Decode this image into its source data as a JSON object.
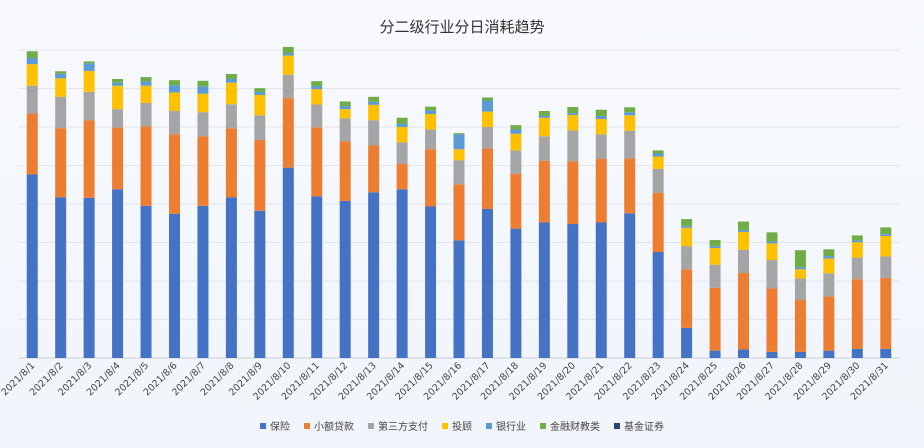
{
  "title": "分二级行业分日消耗趋势",
  "chart_data": {
    "type": "bar",
    "stacked": true,
    "title": "分二级行业分日消耗趋势",
    "xlabel": "",
    "ylabel": "",
    "grid": true,
    "legend_position": "bottom",
    "ylim": [
      0,
      100
    ],
    "categories": [
      "2021/8/1",
      "2021/8/2",
      "2021/8/3",
      "2021/8/4",
      "2021/8/5",
      "2021/8/6",
      "2021/8/7",
      "2021/8/8",
      "2021/8/9",
      "2021/8/10",
      "2021/8/11",
      "2021/8/12",
      "2021/8/13",
      "2021/8/14",
      "2021/8/15",
      "2021/8/16",
      "2021/8/17",
      "2021/8/18",
      "2021/8/19",
      "2021/8/20",
      "2021/8/21",
      "2021/8/22",
      "2021/8/23",
      "2021/8/24",
      "2021/8/25",
      "2021/8/26",
      "2021/8/27",
      "2021/8/28",
      "2021/8/29",
      "2021/8/30",
      "2021/8/31"
    ],
    "series": [
      {
        "name": "保险",
        "color": "#4472c4",
        "values": [
          59.6,
          52.2,
          52.0,
          54.8,
          49.4,
          46.8,
          49.4,
          52.2,
          47.8,
          61.8,
          52.5,
          51.0,
          53.8,
          54.8,
          49.2,
          38.2,
          48.4,
          42.0,
          44.0,
          43.5,
          44.0,
          47.0,
          34.4,
          9.8,
          2.4,
          2.8,
          2.0,
          2.0,
          2.4,
          3.0,
          3.0
        ]
      },
      {
        "name": "小额贷款",
        "color": "#ed7d31",
        "values": [
          19.8,
          22.4,
          25.2,
          20.0,
          25.8,
          25.8,
          22.6,
          22.4,
          23.0,
          22.6,
          22.4,
          19.3,
          15.2,
          8.2,
          18.6,
          18.2,
          19.6,
          17.8,
          20.0,
          20.4,
          20.6,
          17.8,
          19.2,
          19.0,
          20.4,
          24.8,
          20.6,
          16.8,
          17.6,
          22.6,
          23.0
        ]
      },
      {
        "name": "第三方支付",
        "color": "#a5a5a5",
        "values": [
          9.0,
          10.2,
          9.2,
          6.0,
          7.6,
          7.6,
          7.8,
          7.8,
          8.0,
          7.6,
          7.4,
          7.5,
          8.2,
          7.0,
          6.4,
          7.8,
          7.0,
          7.6,
          8.0,
          10.0,
          8.0,
          9.0,
          7.8,
          7.5,
          7.5,
          7.5,
          9.2,
          7.0,
          7.5,
          7.0,
          7.0
        ]
      },
      {
        "name": "投顾",
        "color": "#ffc000",
        "values": [
          7.0,
          6.0,
          6.8,
          7.6,
          5.6,
          6.0,
          6.0,
          7.0,
          6.6,
          6.2,
          5.0,
          3.0,
          5.0,
          5.0,
          5.0,
          3.6,
          5.0,
          5.4,
          6.0,
          5.0,
          5.0,
          5.0,
          4.0,
          6.0,
          5.4,
          5.8,
          5.4,
          3.0,
          4.8,
          5.0,
          6.6
        ]
      },
      {
        "name": "银行业",
        "color": "#5b9bd5",
        "values": [
          2.0,
          1.5,
          2.5,
          1.0,
          1.4,
          2.4,
          2.4,
          1.2,
          1.0,
          0.8,
          1.0,
          1.0,
          1.0,
          1.0,
          1.2,
          4.8,
          3.6,
          1.4,
          0.6,
          0.6,
          1.0,
          1.0,
          1.0,
          0.6,
          0.6,
          0.6,
          0.6,
          0.6,
          0.8,
          0.6,
          0.6
        ]
      },
      {
        "name": "金融财教类",
        "color": "#70ad47",
        "values": [
          2.2,
          0.8,
          0.6,
          1.2,
          1.4,
          1.6,
          1.8,
          1.6,
          1.2,
          2.0,
          1.6,
          1.5,
          1.6,
          2.0,
          1.2,
          0.4,
          1.0,
          1.4,
          1.6,
          2.0,
          2.0,
          1.6,
          1.0,
          2.2,
          2.0,
          2.8,
          3.0,
          5.6,
          2.2,
          1.6,
          2.2
        ]
      },
      {
        "name": "基金证券",
        "color": "#264478",
        "values": [
          0,
          0,
          0,
          0,
          0,
          0,
          0,
          0,
          0,
          0,
          0,
          0,
          0,
          0,
          0,
          0,
          0,
          0,
          0,
          0,
          0,
          0,
          0,
          0,
          0,
          0,
          0,
          0,
          0,
          0,
          0
        ]
      }
    ]
  }
}
